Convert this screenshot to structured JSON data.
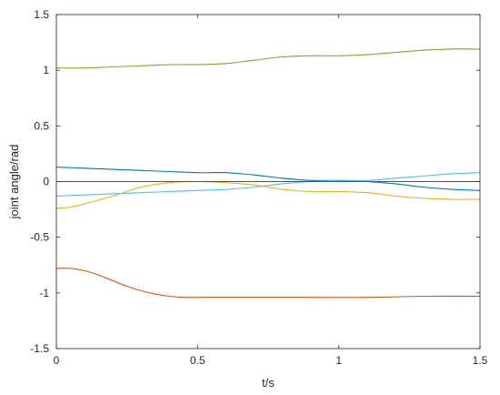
{
  "chart_data": {
    "type": "line",
    "xlabel": "t/s",
    "ylabel": "joint angle/rad",
    "xlim": [
      0,
      1.5
    ],
    "ylim": [
      -1.5,
      1.5
    ],
    "xticks": [
      0,
      0.5,
      1,
      1.5
    ],
    "xtick_labels": [
      "0",
      "0.5",
      "1",
      "1.5"
    ],
    "yticks": [
      -1.5,
      -1,
      -0.5,
      0,
      0.5,
      1,
      1.5
    ],
    "ytick_labels": [
      "-1.5",
      "-1",
      "-0.5",
      "0",
      "0.5",
      "1",
      "1.5"
    ],
    "grid": false,
    "series": [
      {
        "color": "#77ac30",
        "x": [
          0,
          0.1,
          0.2,
          0.3,
          0.4,
          0.5,
          0.6,
          0.7,
          0.8,
          0.9,
          1.0,
          1.1,
          1.2,
          1.3,
          1.4,
          1.5
        ],
        "y": [
          1.02,
          1.02,
          1.03,
          1.04,
          1.05,
          1.05,
          1.06,
          1.09,
          1.12,
          1.13,
          1.13,
          1.14,
          1.16,
          1.18,
          1.19,
          1.19
        ]
      },
      {
        "color": "#0072bd",
        "x": [
          0,
          0.1,
          0.2,
          0.3,
          0.4,
          0.5,
          0.6,
          0.7,
          0.8,
          0.9,
          1.0,
          1.1,
          1.2,
          1.3,
          1.4,
          1.5
        ],
        "y": [
          0.13,
          0.12,
          0.11,
          0.1,
          0.09,
          0.08,
          0.08,
          0.06,
          0.03,
          0.01,
          0.01,
          0.0,
          -0.02,
          -0.05,
          -0.07,
          -0.08
        ]
      },
      {
        "color": "#4dbeee",
        "x": [
          0,
          0.1,
          0.2,
          0.3,
          0.4,
          0.5,
          0.6,
          0.7,
          0.8,
          0.9,
          1.0,
          1.1,
          1.2,
          1.3,
          1.4,
          1.5
        ],
        "y": [
          -0.13,
          -0.12,
          -0.11,
          -0.1,
          -0.09,
          -0.08,
          -0.07,
          -0.05,
          -0.02,
          0.0,
          0.01,
          0.01,
          0.03,
          0.05,
          0.07,
          0.08
        ]
      },
      {
        "color": "#edb120",
        "x": [
          0,
          0.05,
          0.1,
          0.2,
          0.3,
          0.4,
          0.5,
          0.6,
          0.7,
          0.8,
          0.9,
          1.0,
          1.1,
          1.2,
          1.3,
          1.4,
          1.5
        ],
        "y": [
          -0.24,
          -0.23,
          -0.2,
          -0.13,
          -0.05,
          -0.01,
          0.0,
          -0.01,
          -0.03,
          -0.07,
          -0.09,
          -0.09,
          -0.1,
          -0.13,
          -0.15,
          -0.16,
          -0.16
        ]
      },
      {
        "color": "#7e2f8e",
        "x": [
          0,
          1.5
        ],
        "y": [
          0,
          0
        ]
      },
      {
        "color": "#d95319",
        "x": [
          0,
          0.05,
          0.1,
          0.15,
          0.2,
          0.25,
          0.3,
          0.35,
          0.4,
          0.45,
          0.5,
          0.7,
          0.9,
          1.1,
          1.3,
          1.5
        ],
        "y": [
          -0.78,
          -0.78,
          -0.8,
          -0.84,
          -0.89,
          -0.94,
          -0.98,
          -1.01,
          -1.03,
          -1.04,
          -1.04,
          -1.04,
          -1.04,
          -1.04,
          -1.03,
          -1.03
        ]
      }
    ]
  }
}
